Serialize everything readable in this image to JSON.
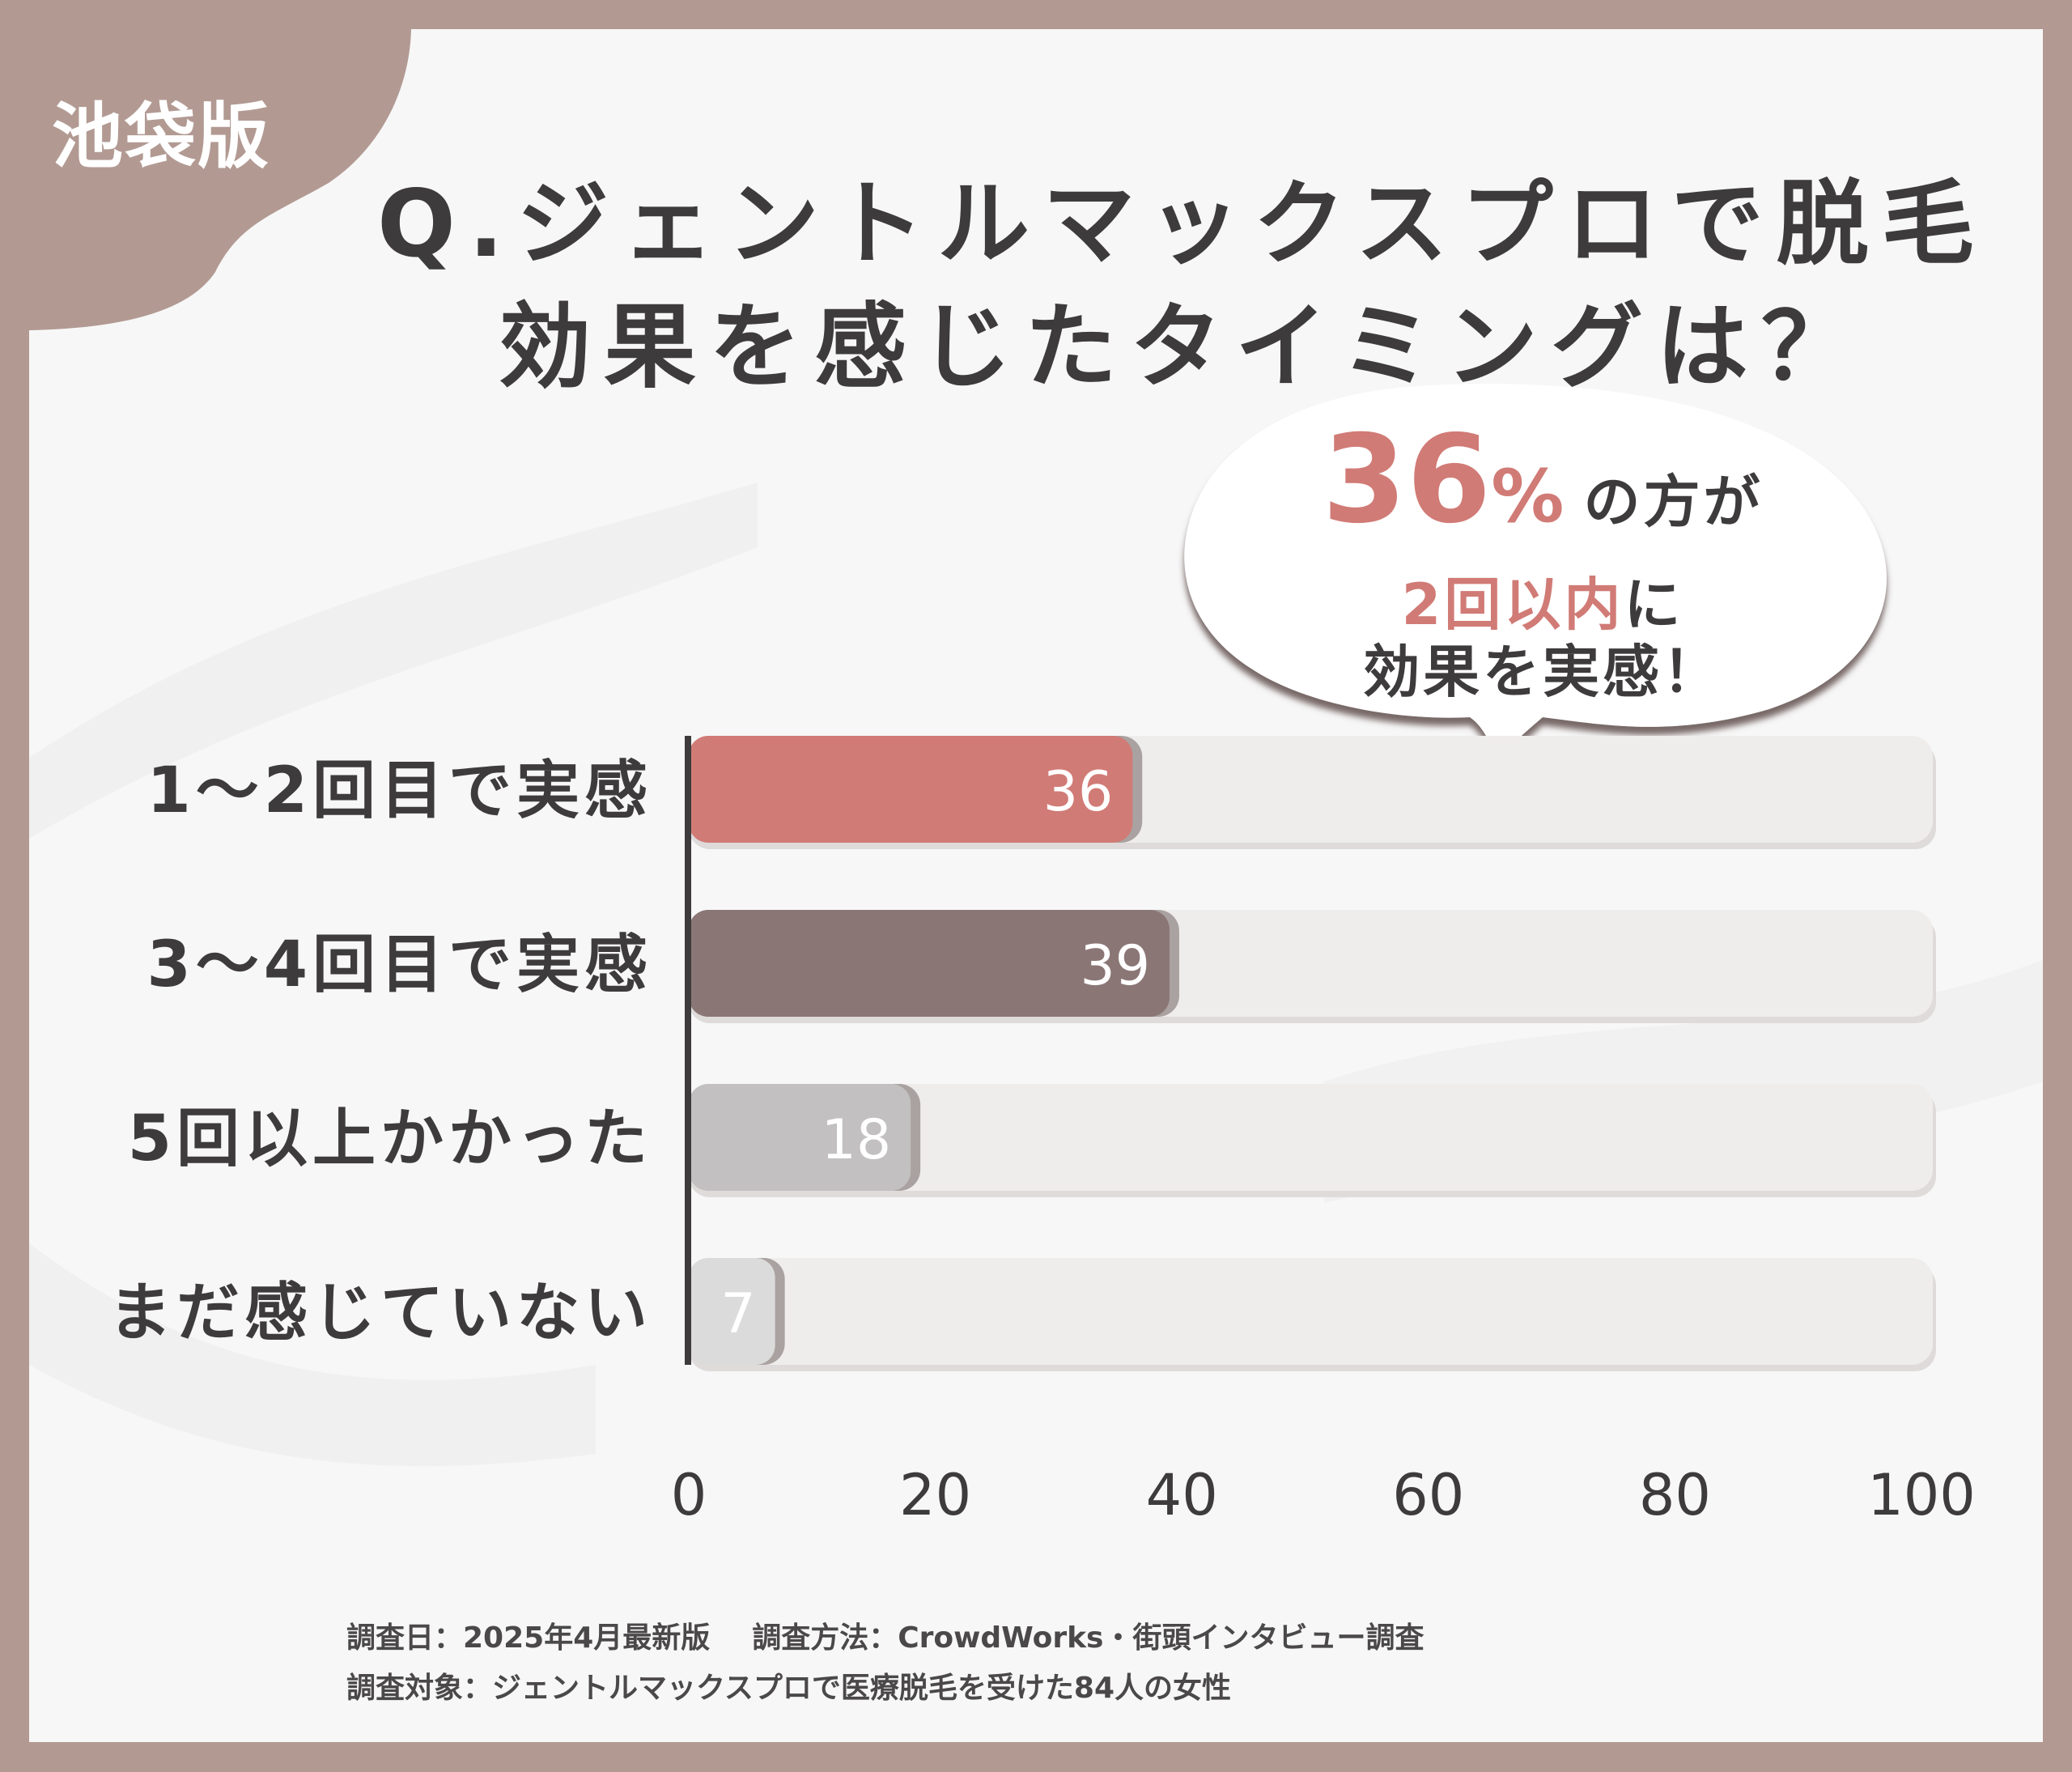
{
  "badge": "池袋版",
  "title": {
    "line1": "Q.ジェントルマックスプロで脱毛",
    "line2": "効果を感じたタイミングは？"
  },
  "callout": {
    "percent": "36",
    "percent_sign": "%",
    "suffix1": "の方が",
    "highlight": "2回以内",
    "suffix2": "に",
    "line3": "効果を実感！"
  },
  "chart_data": {
    "type": "bar",
    "orientation": "horizontal",
    "categories": [
      "1～2回目で実感",
      "3～4回目で実感",
      "5回以上かかった",
      "まだ感じていない"
    ],
    "values": [
      36,
      39,
      18,
      7
    ],
    "xlim": [
      0,
      100
    ],
    "xticks": [
      "0",
      "20",
      "40",
      "60",
      "80",
      "100"
    ],
    "colors": [
      "#d17b76",
      "#8a7775",
      "#c2c0c0",
      "#dcdbdb"
    ],
    "track_color": "#efedec",
    "grid": false
  },
  "footnotes": {
    "date": "調査日：2025年4月最新版",
    "method": "調査方法：CrowdWorks・街頭インタビュー調査",
    "target": "調査対象：ジェントルマックスプロで医療脱毛を受けた84人の女性"
  }
}
